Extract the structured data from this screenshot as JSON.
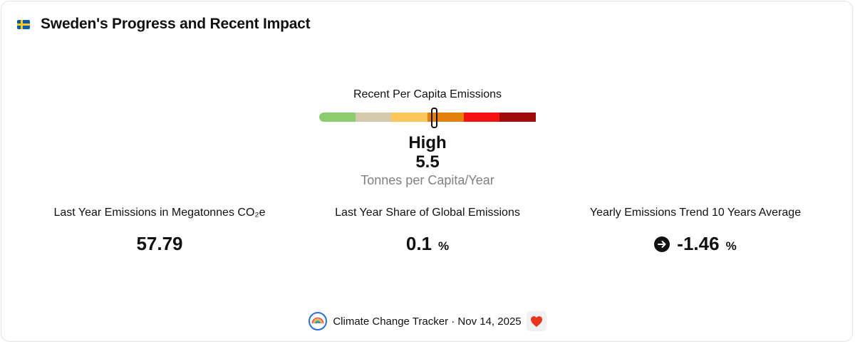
{
  "header": {
    "flag_icon": "sweden-flag-icon",
    "title": "Sweden's Progress and Recent Impact"
  },
  "gauge": {
    "label": "Recent Per Capita Emissions",
    "segment_colors": [
      "#8ccd6f",
      "#d5c9ab",
      "#fac65a",
      "#e2800c",
      "#f31111",
      "#a00a08"
    ],
    "level": "High",
    "value": "5.5",
    "unit": "Tonnes per Capita/Year",
    "marker_position_fraction": 0.53
  },
  "stats": {
    "emissions": {
      "label": "Last Year Emissions in Megatonnes CO₂e",
      "value": "57.79"
    },
    "share": {
      "label": "Last Year Share of Global Emissions",
      "value": "0.1",
      "unit": "%"
    },
    "trend": {
      "label": "Yearly Emissions Trend 10 Years Average",
      "icon": "arrow-right-circle-icon",
      "value": "-1.46",
      "unit": "%"
    }
  },
  "footer": {
    "logo_icon": "climate-change-tracker-logo-icon",
    "text": "Climate Change Tracker · Nov 14, 2025",
    "heart_icon": "heart-icon"
  }
}
